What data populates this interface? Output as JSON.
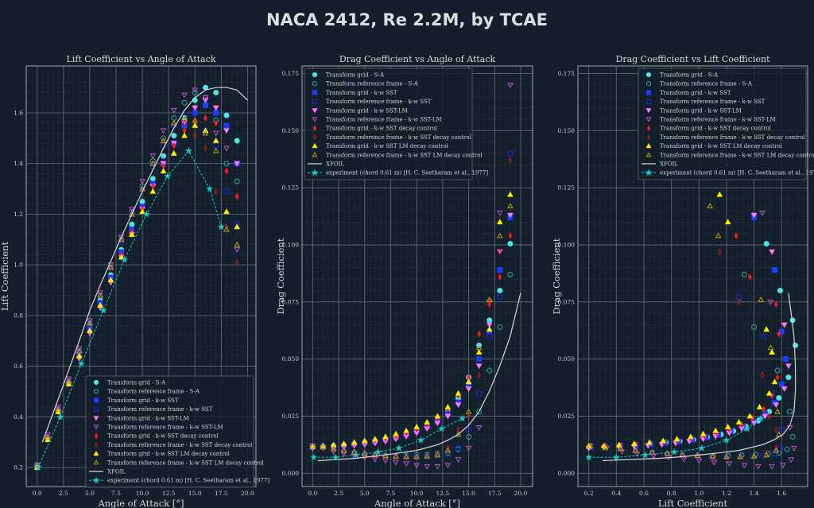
{
  "title": "NACA 2412, Re 2.2M, by TCAE",
  "colors": {
    "background": "#13202b",
    "grid": "#5b6770",
    "frame": "#a0a6ab"
  },
  "chart_data": {
    "type": "scatter",
    "series": [
      {
        "name": "Transform grid - S-A",
        "marker": "circle",
        "filled": true,
        "color": "#4fe3e3",
        "alpha": [
          0,
          1,
          2,
          3,
          4,
          5,
          6,
          7,
          8,
          9,
          10,
          11,
          12,
          13,
          14,
          15,
          16,
          17,
          18,
          19
        ],
        "cl": [
          0.21,
          0.32,
          0.43,
          0.54,
          0.65,
          0.76,
          0.86,
          0.96,
          1.06,
          1.16,
          1.25,
          1.34,
          1.43,
          1.51,
          1.58,
          1.65,
          1.7,
          1.68,
          1.59,
          1.49
        ],
        "cd": [
          0.012,
          0.012,
          0.0122,
          0.0125,
          0.013,
          0.0135,
          0.014,
          0.0148,
          0.0158,
          0.017,
          0.0185,
          0.0205,
          0.023,
          0.027,
          0.033,
          0.042,
          0.056,
          0.067,
          0.08,
          0.1005
        ]
      },
      {
        "name": "Transform reference frame - S-A",
        "marker": "circle",
        "filled": false,
        "color": "#2aa9a9",
        "alpha": [
          0,
          1,
          2,
          3,
          4,
          5,
          6,
          7,
          8,
          9,
          10,
          11,
          12,
          13,
          14,
          15,
          16,
          17,
          18,
          19
        ],
        "cl": [
          0.21,
          0.32,
          0.43,
          0.54,
          0.66,
          0.77,
          0.88,
          0.99,
          1.1,
          1.21,
          1.31,
          1.41,
          1.5,
          1.58,
          1.64,
          1.68,
          1.66,
          1.57,
          1.4,
          1.33
        ],
        "cd": [
          0.012,
          0.012,
          0.011,
          0.01,
          0.009,
          0.0085,
          0.008,
          0.0078,
          0.0077,
          0.0078,
          0.008,
          0.0082,
          0.0086,
          0.009,
          0.0105,
          0.016,
          0.027,
          0.045,
          0.064,
          0.087
        ]
      },
      {
        "name": "Transform grid - k-w SST",
        "marker": "square",
        "filled": true,
        "color": "#1a3cff",
        "alpha": [
          0,
          1,
          2,
          3,
          4,
          5,
          6,
          7,
          8,
          9,
          10,
          11,
          12,
          13,
          14,
          15,
          16,
          17,
          18,
          19
        ],
        "cl": [
          0.21,
          0.32,
          0.43,
          0.54,
          0.65,
          0.75,
          0.85,
          0.95,
          1.05,
          1.14,
          1.23,
          1.32,
          1.4,
          1.48,
          1.55,
          1.6,
          1.63,
          1.6,
          1.55,
          1.4
        ],
        "cd": [
          0.0115,
          0.0117,
          0.012,
          0.0123,
          0.0128,
          0.0133,
          0.0139,
          0.0147,
          0.0157,
          0.0169,
          0.0184,
          0.0203,
          0.0228,
          0.026,
          0.031,
          0.039,
          0.05,
          0.062,
          0.089,
          0.112
        ]
      },
      {
        "name": "Transform reference frame - k-w SST",
        "marker": "square",
        "filled": false,
        "color": "#1a2ad6",
        "alpha": [
          0,
          1,
          2,
          3,
          4,
          5,
          6,
          7,
          8,
          9,
          10,
          11,
          12,
          13,
          14,
          15,
          16,
          17,
          18,
          19
        ],
        "cl": [
          0.21,
          0.32,
          0.43,
          0.54,
          0.66,
          0.77,
          0.88,
          0.99,
          1.09,
          1.2,
          1.3,
          1.39,
          1.47,
          1.55,
          1.59,
          1.6,
          1.53,
          1.47,
          1.29,
          1.16
        ],
        "cd": [
          0.012,
          0.0118,
          0.011,
          0.0098,
          0.009,
          0.0083,
          0.0078,
          0.0075,
          0.0073,
          0.0072,
          0.0073,
          0.0075,
          0.0078,
          0.0085,
          0.011,
          0.019,
          0.035,
          0.06,
          0.077,
          0.14
        ]
      },
      {
        "name": "Transform grid - k-w SST-LM",
        "marker": "tri-down",
        "filled": true,
        "color": "#ff77ff",
        "alpha": [
          0,
          1,
          2,
          3,
          4,
          5,
          6,
          7,
          8,
          9,
          10,
          11,
          12,
          13,
          14,
          15,
          16,
          17,
          18,
          19
        ],
        "cl": [
          0.2,
          0.31,
          0.42,
          0.53,
          0.63,
          0.73,
          0.83,
          0.93,
          1.03,
          1.12,
          1.22,
          1.31,
          1.4,
          1.48,
          1.56,
          1.62,
          1.65,
          1.62,
          1.53,
          1.4
        ],
        "cd": [
          0.011,
          0.0112,
          0.0114,
          0.0117,
          0.0121,
          0.0126,
          0.0132,
          0.014,
          0.015,
          0.0162,
          0.0177,
          0.0196,
          0.022,
          0.025,
          0.03,
          0.037,
          0.047,
          0.065,
          0.097,
          0.113
        ]
      },
      {
        "name": "Transform reference frame - k-w SST-LM",
        "marker": "tri-down",
        "filled": false,
        "color": "#b850c8",
        "alpha": [
          0,
          1,
          2,
          3,
          4,
          5,
          6,
          7,
          8,
          9,
          10,
          11,
          12,
          13,
          14,
          15,
          16,
          17,
          18,
          19
        ],
        "cl": [
          0.21,
          0.33,
          0.44,
          0.55,
          0.67,
          0.78,
          0.89,
          1.0,
          1.11,
          1.22,
          1.33,
          1.43,
          1.53,
          1.61,
          1.67,
          1.69,
          1.66,
          1.52,
          1.46,
          1.06
        ],
        "cd": [
          0.012,
          0.011,
          0.0095,
          0.0085,
          0.0075,
          0.007,
          0.0062,
          0.0055,
          0.0048,
          0.0042,
          0.0035,
          0.003,
          0.003,
          0.0035,
          0.006,
          0.011,
          0.02,
          0.075,
          0.114,
          0.17
        ]
      },
      {
        "name": "Transform grid - k-w SST decay control",
        "marker": "diamond",
        "filled": true,
        "color": "#ff1a1a",
        "alpha": [
          0,
          1,
          2,
          3,
          4,
          5,
          6,
          7,
          8,
          9,
          10,
          11,
          12,
          13,
          14,
          15,
          16,
          17,
          18,
          19
        ],
        "cl": [
          0.21,
          0.32,
          0.43,
          0.54,
          0.64,
          0.74,
          0.84,
          0.94,
          1.04,
          1.13,
          1.22,
          1.31,
          1.39,
          1.47,
          1.53,
          1.57,
          1.58,
          1.56,
          1.37,
          1.27
        ],
        "cd": [
          0.0118,
          0.012,
          0.0123,
          0.0127,
          0.0132,
          0.0138,
          0.0145,
          0.0153,
          0.0164,
          0.0177,
          0.0193,
          0.0213,
          0.024,
          0.028,
          0.034,
          0.042,
          0.061,
          0.074,
          0.086,
          0.104
        ]
      },
      {
        "name": "Transform reference frame - k-w SST decay control",
        "marker": "diamond",
        "filled": false,
        "color": "#c41616",
        "alpha": [
          0,
          1,
          2,
          3,
          4,
          5,
          6,
          7,
          8,
          9,
          10,
          11,
          12,
          13,
          14,
          15,
          16,
          17,
          18,
          19
        ],
        "cl": [
          0.21,
          0.32,
          0.43,
          0.54,
          0.66,
          0.77,
          0.88,
          0.99,
          1.1,
          1.2,
          1.3,
          1.4,
          1.49,
          1.56,
          1.56,
          1.51,
          1.46,
          1.29,
          1.15,
          1.01
        ],
        "cd": [
          0.012,
          0.0115,
          0.0105,
          0.0095,
          0.0088,
          0.0082,
          0.0077,
          0.0073,
          0.007,
          0.007,
          0.0072,
          0.0076,
          0.0085,
          0.011,
          0.019,
          0.025,
          0.043,
          0.075,
          0.097,
          0.137
        ]
      },
      {
        "name": "Transform grid - k-w SST LM decay control",
        "marker": "tri-up",
        "filled": true,
        "color": "#ffee00",
        "alpha": [
          0,
          1,
          2,
          3,
          4,
          5,
          6,
          7,
          8,
          9,
          10,
          11,
          12,
          13,
          14,
          15,
          16,
          17,
          18,
          19
        ],
        "cl": [
          0.2,
          0.31,
          0.42,
          0.53,
          0.64,
          0.74,
          0.84,
          0.94,
          1.03,
          1.12,
          1.21,
          1.29,
          1.37,
          1.44,
          1.51,
          1.55,
          1.53,
          1.49,
          1.21,
          1.15
        ],
        "cd": [
          0.0118,
          0.012,
          0.0124,
          0.0129,
          0.0135,
          0.0142,
          0.015,
          0.016,
          0.0172,
          0.0186,
          0.0203,
          0.0224,
          0.025,
          0.029,
          0.035,
          0.04,
          0.053,
          0.063,
          0.11,
          0.122
        ]
      },
      {
        "name": "Transform reference frame - k-w SST LM decay control",
        "marker": "tri-up",
        "filled": false,
        "color": "#b4a400",
        "alpha": [
          0,
          1,
          2,
          3,
          4,
          5,
          6,
          7,
          8,
          9,
          10,
          11,
          12,
          13,
          14,
          15,
          16,
          17,
          18,
          19
        ],
        "cl": [
          0.21,
          0.32,
          0.43,
          0.54,
          0.66,
          0.77,
          0.88,
          0.99,
          1.1,
          1.2,
          1.3,
          1.4,
          1.49,
          1.56,
          1.58,
          1.57,
          1.52,
          1.45,
          1.14,
          1.08
        ],
        "cd": [
          0.012,
          0.0115,
          0.0108,
          0.01,
          0.0093,
          0.0087,
          0.0082,
          0.0078,
          0.0075,
          0.0073,
          0.0073,
          0.0075,
          0.008,
          0.01,
          0.017,
          0.027,
          0.055,
          0.076,
          0.104,
          0.117
        ]
      },
      {
        "name": "XFOIL",
        "marker": "line",
        "filled": false,
        "color": "#d8d8d8",
        "alpha": [
          0.5,
          2,
          4,
          5,
          6,
          8,
          10,
          12,
          13,
          14,
          15,
          16,
          17,
          18,
          19,
          20
        ],
        "cl": [
          0.3,
          0.47,
          0.7,
          0.82,
          0.92,
          1.11,
          1.29,
          1.46,
          1.54,
          1.61,
          1.66,
          1.69,
          1.7,
          1.7,
          1.69,
          1.65
        ],
        "cd": [
          0.0055,
          0.006,
          0.0065,
          0.007,
          0.0075,
          0.0087,
          0.01,
          0.0125,
          0.0145,
          0.017,
          0.021,
          0.027,
          0.036,
          0.047,
          0.06,
          0.079
        ]
      },
      {
        "name": "experiment (chord 0.61 m) [H. C. Seetharam et al., 1977]",
        "marker": "star-dashed",
        "filled": true,
        "color": "#19c8c8",
        "alpha": [
          0.1,
          2.2,
          4.2,
          6.3,
          8.3,
          10.4,
          12.4,
          14.4,
          16.4,
          17.5
        ],
        "cl": [
          0.2,
          0.4,
          0.61,
          0.82,
          1.02,
          1.2,
          1.35,
          1.45,
          1.3,
          1.15
        ],
        "cd": [
          0.007,
          0.007,
          0.008,
          0.0093,
          0.011,
          0.0145,
          0.0195,
          0.024,
          null,
          null
        ]
      }
    ],
    "plots": [
      {
        "title": "Lift Coefficient vs Angle of Attack",
        "xlabel": "Angle of Attack [°]",
        "ylabel": "Lift Coefficient",
        "x_key": "alpha",
        "y_key": "cl",
        "xlim": [
          -1.04,
          20.8
        ],
        "ylim": [
          0.125,
          1.785
        ],
        "xticks": [
          "0.0",
          "2.5",
          "5.0",
          "7.5",
          "10.0",
          "12.5",
          "15.0",
          "17.5",
          "20.0"
        ],
        "yticks": [
          "0.2",
          "0.4",
          "0.6",
          "0.8",
          "1.0",
          "1.2",
          "1.4",
          "1.6"
        ],
        "grid": true,
        "legend": "lower-right"
      },
      {
        "title": "Drag Coefficient vs Angle of Attack",
        "xlabel": "Angle of Attack [°]",
        "ylabel": "Drag Coefficient",
        "x_key": "alpha",
        "y_key": "cd",
        "xlim": [
          -1.02,
          21.15
        ],
        "ylim": [
          -0.0058,
          0.1783
        ],
        "xticks": [
          "0.0",
          "2.5",
          "5.0",
          "7.5",
          "10.0",
          "12.5",
          "15.0",
          "17.5",
          "20.0"
        ],
        "yticks": [
          "0.000",
          "0.025",
          "0.050",
          "0.075",
          "0.100",
          "0.125",
          "0.150",
          "0.175"
        ],
        "grid": true,
        "legend": "upper-left"
      },
      {
        "title": "Drag Coefficient vs Lift Coefficient",
        "xlabel": "Lift Coefficient",
        "ylabel": "Drag Coefficient",
        "x_key": "cl",
        "y_key": "cd",
        "xlim": [
          0.121,
          1.789
        ],
        "ylim": [
          -0.0058,
          0.1783
        ],
        "xticks": [
          "0.2",
          "0.4",
          "0.6",
          "0.8",
          "1.0",
          "1.2",
          "1.4",
          "1.6"
        ],
        "yticks": [
          "0.000",
          "0.025",
          "0.050",
          "0.075",
          "0.100",
          "0.125",
          "0.150",
          "0.175"
        ],
        "grid": true,
        "legend": "upper-right"
      }
    ]
  }
}
